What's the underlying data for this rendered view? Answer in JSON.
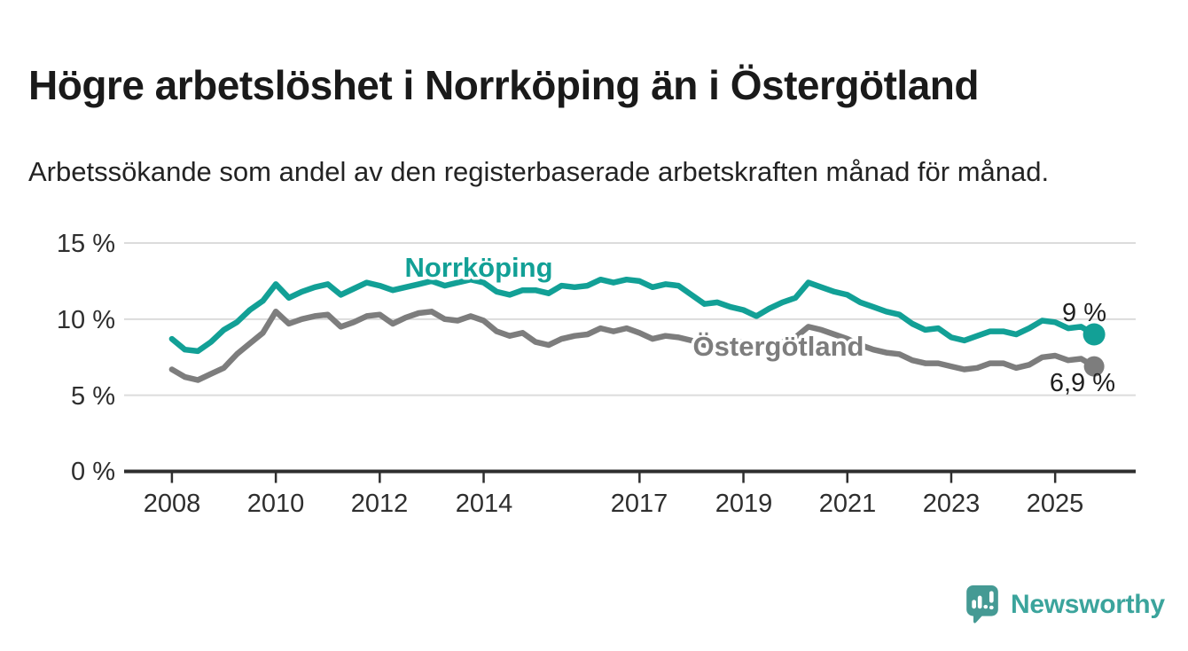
{
  "header": {
    "title": "Högre arbetslöshet i Norrköping än i Östergötland",
    "subtitle": "Arbetssökande som andel av den registerbaserade arbetskraften månad för månad."
  },
  "chart_data": {
    "type": "line",
    "title": "Högre arbetslöshet i Norrköping än i Östergötland",
    "subtitle": "Arbetssökande som andel av den registerbaserade arbetskraften månad för månad.",
    "unit": "%",
    "grid": "horizontal",
    "legend": "inline-labels",
    "x_axis": {
      "label": "",
      "start": 2008.0,
      "step": 0.25,
      "range": [
        2007.08,
        2026.55
      ],
      "tick_values": [
        2008,
        2010,
        2012,
        2014,
        2017,
        2019,
        2021,
        2023,
        2025
      ],
      "tick_labels": [
        "2008",
        "2010",
        "2012",
        "2014",
        "2017",
        "2019",
        "2021",
        "2023",
        "2025"
      ]
    },
    "y_axis": {
      "label": "",
      "range": [
        0,
        15
      ],
      "tick_values": [
        0,
        5,
        10,
        15
      ],
      "tick_labels": [
        "0 %",
        "5 %",
        "10 %",
        "15 %"
      ]
    },
    "series": [
      {
        "name": "Norrköping",
        "color": "#12A096",
        "end_label": "9 %",
        "end_value": 9.0,
        "values": [
          8.7,
          8.0,
          7.9,
          8.5,
          9.3,
          9.8,
          10.6,
          11.2,
          12.3,
          11.4,
          11.8,
          12.1,
          12.3,
          11.6,
          12.0,
          12.4,
          12.2,
          11.9,
          12.1,
          12.3,
          12.5,
          12.2,
          12.4,
          12.6,
          12.4,
          11.8,
          11.6,
          11.9,
          11.9,
          11.7,
          12.2,
          12.1,
          12.2,
          12.6,
          12.4,
          12.6,
          12.5,
          12.1,
          12.3,
          12.2,
          11.6,
          11.0,
          11.1,
          10.8,
          10.6,
          10.2,
          10.7,
          11.1,
          11.4,
          12.4,
          12.1,
          11.8,
          11.6,
          11.1,
          10.8,
          10.5,
          10.3,
          9.7,
          9.3,
          9.4,
          8.8,
          8.6,
          8.9,
          9.2,
          9.2,
          9.0,
          9.4,
          9.9,
          9.8,
          9.4,
          9.5,
          9.0
        ]
      },
      {
        "name": "Östergötland",
        "color": "#7D7D7D",
        "end_label": "6,9 %",
        "end_value": 6.9,
        "values": [
          6.7,
          6.2,
          6.0,
          6.4,
          6.8,
          7.7,
          8.4,
          9.1,
          10.5,
          9.7,
          10.0,
          10.2,
          10.3,
          9.5,
          9.8,
          10.2,
          10.3,
          9.7,
          10.1,
          10.4,
          10.5,
          10.0,
          9.9,
          10.2,
          9.9,
          9.2,
          8.9,
          9.1,
          8.5,
          8.3,
          8.7,
          8.9,
          9.0,
          9.4,
          9.2,
          9.4,
          9.1,
          8.7,
          8.9,
          8.8,
          8.6,
          8.3,
          8.4,
          8.4,
          8.5,
          8.2,
          8.3,
          8.5,
          8.8,
          9.5,
          9.3,
          9.0,
          8.7,
          8.3,
          8.0,
          7.8,
          7.7,
          7.3,
          7.1,
          7.1,
          6.9,
          6.7,
          6.8,
          7.1,
          7.1,
          6.8,
          7.0,
          7.5,
          7.6,
          7.3,
          7.4,
          6.9
        ]
      }
    ]
  },
  "footer": {
    "brand": "Newsworthy",
    "logo_color": "#459A94",
    "text_color": "#3BA49C"
  }
}
